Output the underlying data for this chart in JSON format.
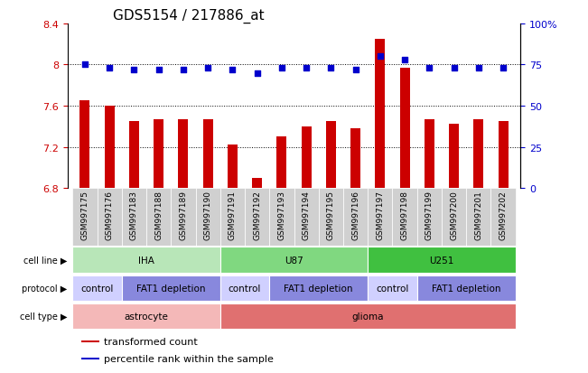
{
  "title": "GDS5154 / 217886_at",
  "samples": [
    "GSM997175",
    "GSM997176",
    "GSM997183",
    "GSM997188",
    "GSM997189",
    "GSM997190",
    "GSM997191",
    "GSM997192",
    "GSM997193",
    "GSM997194",
    "GSM997195",
    "GSM997196",
    "GSM997197",
    "GSM997198",
    "GSM997199",
    "GSM997200",
    "GSM997201",
    "GSM997202"
  ],
  "bar_values": [
    7.65,
    7.6,
    7.45,
    7.47,
    7.47,
    7.47,
    7.22,
    6.9,
    7.3,
    7.4,
    7.45,
    7.38,
    8.25,
    7.97,
    7.47,
    7.42,
    7.47,
    7.45
  ],
  "dot_values": [
    75,
    73,
    72,
    72,
    72,
    73,
    72,
    70,
    73,
    73,
    73,
    72,
    80,
    78,
    73,
    73,
    73,
    73
  ],
  "bar_color": "#cc0000",
  "dot_color": "#0000cc",
  "ylim_left": [
    6.8,
    8.4
  ],
  "ylim_right": [
    0,
    100
  ],
  "yticks_left": [
    6.8,
    7.2,
    7.6,
    8.0,
    8.4
  ],
  "yticks_right": [
    0,
    25,
    50,
    75,
    100
  ],
  "ytick_labels_left": [
    "6.8",
    "7.2",
    "7.6",
    "8",
    "8.4"
  ],
  "ytick_labels_right": [
    "0",
    "25",
    "50",
    "75",
    "100%"
  ],
  "hlines": [
    7.2,
    7.6,
    8.0
  ],
  "cell_line_groups": [
    {
      "label": "IHA",
      "start": 0,
      "end": 5,
      "color": "#b8e6b8"
    },
    {
      "label": "U87",
      "start": 6,
      "end": 11,
      "color": "#80d880"
    },
    {
      "label": "U251",
      "start": 12,
      "end": 17,
      "color": "#40c040"
    }
  ],
  "protocol_groups": [
    {
      "label": "control",
      "start": 0,
      "end": 1,
      "color": "#d0d0ff"
    },
    {
      "label": "FAT1 depletion",
      "start": 2,
      "end": 5,
      "color": "#8888dd"
    },
    {
      "label": "control",
      "start": 6,
      "end": 7,
      "color": "#d0d0ff"
    },
    {
      "label": "FAT1 depletion",
      "start": 8,
      "end": 11,
      "color": "#8888dd"
    },
    {
      "label": "control",
      "start": 12,
      "end": 13,
      "color": "#d0d0ff"
    },
    {
      "label": "FAT1 depletion",
      "start": 14,
      "end": 17,
      "color": "#8888dd"
    }
  ],
  "cell_type_groups": [
    {
      "label": "astrocyte",
      "start": 0,
      "end": 5,
      "color": "#f4b8b8"
    },
    {
      "label": "glioma",
      "start": 6,
      "end": 17,
      "color": "#e07070"
    }
  ],
  "row_labels": [
    "cell line",
    "protocol",
    "cell type"
  ],
  "legend": [
    {
      "color": "#cc0000",
      "label": "transformed count",
      "marker": "s"
    },
    {
      "color": "#0000cc",
      "label": "percentile rank within the sample",
      "marker": "s"
    }
  ],
  "background_color": "#ffffff",
  "plot_bg_color": "#ffffff",
  "title_fontsize": 11,
  "tick_fontsize": 8,
  "bar_width": 0.4
}
